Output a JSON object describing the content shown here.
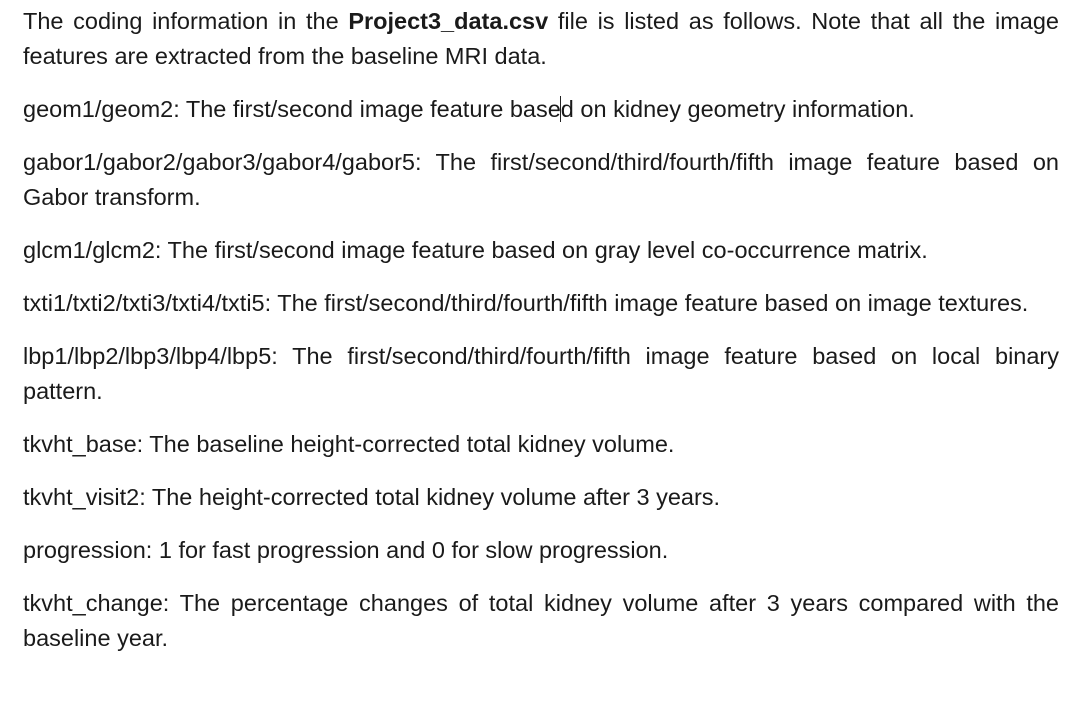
{
  "intro": {
    "text_before": "The coding information in the ",
    "filename": "Project3_data.csv",
    "text_after": " file is listed as follows. Note that all the image features are extracted from the baseline MRI data."
  },
  "entries": [
    {
      "key": "geom1/geom2",
      "desc_before_caret": ": The first/second image feature base",
      "desc_after_caret": "d on kidney geometry information."
    },
    {
      "key": "gabor1/gabor2/gabor3/gabor4/gabor5",
      "desc": ": The first/second/third/fourth/fifth image feature based on Gabor transform."
    },
    {
      "key": "glcm1/glcm2",
      "desc": ": The first/second image feature based on gray level co-occurrence matrix."
    },
    {
      "key": "txti1/txti2/txti3/txti4/txti5",
      "desc": ": The first/second/third/fourth/fifth image feature based on image textures."
    },
    {
      "key": "lbp1/lbp2/lbp3/lbp4/lbp5",
      "desc": ": The first/second/third/fourth/fifth image feature based on local binary pattern."
    },
    {
      "key": "tkvht_base",
      "desc": ": The baseline height-corrected total kidney volume."
    },
    {
      "key": "tkvht_visit2",
      "desc": ": The height-corrected total kidney volume after 3 years."
    },
    {
      "key": "progression",
      "desc": ": 1 for fast progression and 0 for slow progression."
    },
    {
      "key": "tkvht_change",
      "desc": ": The percentage changes of total kidney volume after 3 years compared with the baseline year."
    }
  ]
}
